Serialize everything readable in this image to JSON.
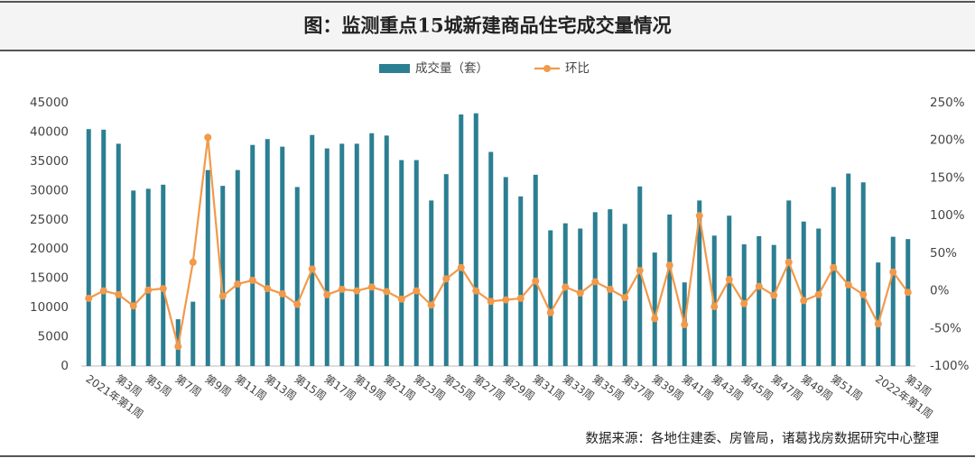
{
  "chart_data": {
    "type": "bar_line",
    "title": "图：监测重点15城新建商品住宅成交量情况",
    "source": "数据来源：各地住建委、房管局，诸葛找房数据研究中心整理",
    "categories": [
      "2021年第1周",
      null,
      "第3周",
      null,
      "第5周",
      null,
      "第7周",
      null,
      "第9周",
      null,
      "第11周",
      null,
      "第13周",
      null,
      "第15周",
      null,
      "第17周",
      null,
      "第19周",
      null,
      "第21周",
      null,
      "第23周",
      null,
      "第25周",
      null,
      "第27周",
      null,
      "第29周",
      null,
      "第31周",
      null,
      "第33周",
      null,
      "第35周",
      null,
      "第37周",
      null,
      "第39周",
      null,
      "第41周",
      null,
      "第43周",
      null,
      "第45周",
      null,
      "第47周",
      null,
      "第49周",
      null,
      "第51周",
      null,
      null,
      "2022年第1周",
      null,
      "第3周"
    ],
    "series": [
      {
        "name": "成交量（套）",
        "color": "#2b7f92",
        "values": [
          40500,
          40400,
          38000,
          30000,
          30300,
          31000,
          8000,
          11000,
          33500,
          30800,
          33500,
          37800,
          38800,
          37500,
          30600,
          39500,
          37200,
          38000,
          38000,
          39800,
          39400,
          35200,
          35200,
          28300,
          32800,
          43000,
          43200,
          36600,
          32300,
          29000,
          32700,
          23200,
          24400,
          23500,
          26300,
          26800,
          24300,
          30700,
          19400,
          25900,
          14300,
          28300,
          22300,
          25700,
          20800,
          22200,
          20700,
          28300,
          24700,
          23500,
          30600,
          32900,
          31400,
          17700,
          22100,
          21700
        ]
      },
      {
        "name": "环比",
        "color": "#f2994a",
        "axis": "y2",
        "values": [
          -10,
          0,
          -5,
          -20,
          1,
          3,
          -74,
          38,
          204,
          -7,
          9,
          14,
          3,
          -4,
          -18,
          29,
          -5,
          2,
          0,
          5,
          -1,
          -11,
          0,
          -19,
          16,
          31,
          0,
          -14,
          -12,
          -10,
          13,
          -29,
          5,
          -3,
          12,
          2,
          -9,
          27,
          -37,
          34,
          -45,
          100,
          -21,
          15,
          -17,
          6,
          -6,
          38,
          -13,
          -5,
          31,
          8,
          -5,
          -44,
          25,
          -2
        ]
      }
    ],
    "ylim": [
      0,
      45000
    ],
    "yticks": [
      0,
      5000,
      10000,
      15000,
      20000,
      25000,
      30000,
      35000,
      40000,
      45000
    ],
    "y2lim": [
      -100,
      250
    ],
    "y2ticks": [
      {
        "value": -100,
        "label": "-100%"
      },
      {
        "value": -50,
        "label": "-50%"
      },
      {
        "value": 0,
        "label": "0%"
      },
      {
        "value": 50,
        "label": "50%"
      },
      {
        "value": 100,
        "label": "100%"
      },
      {
        "value": 150,
        "label": "150%"
      },
      {
        "value": 200,
        "label": "200%"
      },
      {
        "value": 250,
        "label": "250%"
      }
    ],
    "legend": "top"
  }
}
